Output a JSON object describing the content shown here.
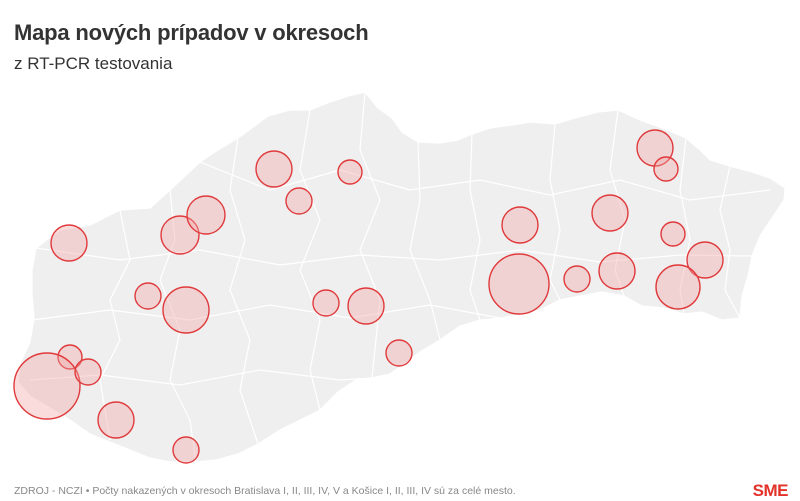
{
  "header": {
    "title": "Mapa nových prípadov v okresoch",
    "subtitle": "z RT-PCR testovania"
  },
  "footer": {
    "source": "ZDROJ - NCZI • Počty nakazených v okresoch Bratislava I, II, III, IV, V a Košice I, II, III, IV sú za celé mesto.",
    "logo": "SME"
  },
  "colors": {
    "bubble_fill": "#f1a4a4",
    "bubble_stroke": "#e0393b",
    "land": "#efefef",
    "title": "#333333"
  },
  "map": {
    "bubble_count": 29,
    "bubble_relative_sizes": [
      0.36,
      0.47,
      0.82,
      0.42,
      0.6,
      0.22,
      0.19,
      0.58,
      0.36,
      0.41,
      0.5,
      0.36,
      0.23,
      0.27,
      1.0,
      0.27,
      0.27,
      0.38,
      0.48,
      0.44,
      0.26,
      0.37,
      0.4,
      0.33,
      0.25,
      0.37,
      0.41,
      0.26,
      0.2
    ]
  }
}
